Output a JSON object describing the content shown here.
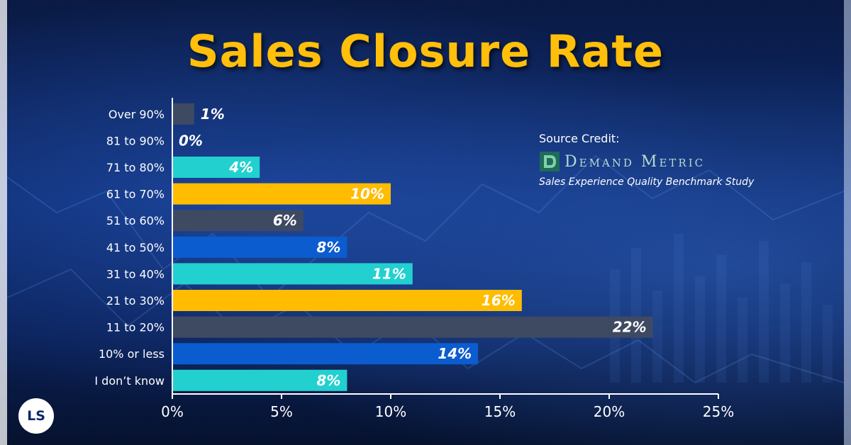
{
  "title": "Sales Closure Rate",
  "credit": {
    "heading": "Source Credit:",
    "brand": "Demand Metric",
    "study": "Sales Experience Quality Benchmark Study",
    "logo_icon": "demand-metric-logo-icon"
  },
  "logo": {
    "text": "LS"
  },
  "colors": {
    "gray": "#3e4a62",
    "teal": "#22d0d0",
    "yellow": "#ffbc00",
    "blue": "#0b5ccf",
    "title": "#ffbf0a"
  },
  "chart_data": {
    "type": "bar",
    "orientation": "horizontal",
    "title": "Sales Closure Rate",
    "categories": [
      "Over 90%",
      "81 to 90%",
      "71 to 80%",
      "61 to 70%",
      "51 to 60%",
      "41 to 50%",
      "31 to 40%",
      "21 to 30%",
      "11 to 20%",
      "10% or less",
      "I don’t know"
    ],
    "values": [
      1,
      0,
      4,
      10,
      6,
      8,
      11,
      16,
      22,
      14,
      8
    ],
    "value_labels": [
      "1%",
      "0%",
      "4%",
      "10%",
      "6%",
      "8%",
      "11%",
      "16%",
      "22%",
      "14%",
      "8%"
    ],
    "bar_colors": [
      "#3e4a62",
      "#3e4a62",
      "#22d0d0",
      "#ffbc00",
      "#3e4a62",
      "#0b5ccf",
      "#22d0d0",
      "#ffbc00",
      "#3e4a62",
      "#0b5ccf",
      "#22d0d0"
    ],
    "xlim": [
      0,
      25
    ],
    "x_ticks": [
      0,
      5,
      10,
      15,
      20,
      25
    ],
    "x_tick_labels": [
      "0%",
      "5%",
      "10%",
      "15%",
      "20%",
      "25%"
    ],
    "xlabel": "",
    "ylabel": "",
    "grid": false,
    "legend": "none"
  }
}
